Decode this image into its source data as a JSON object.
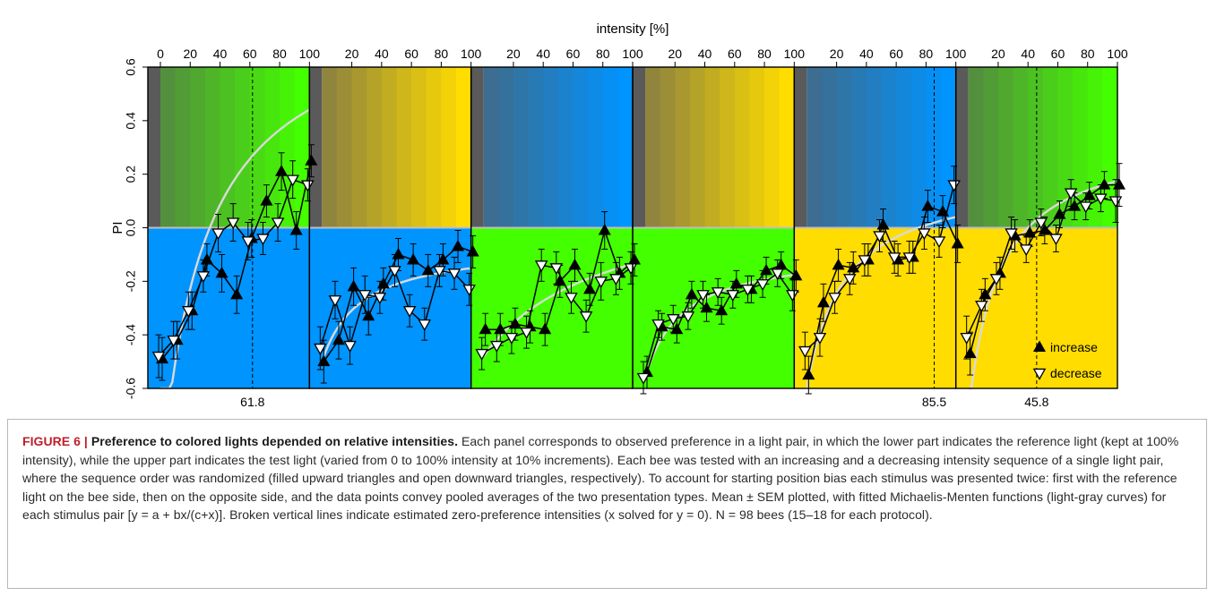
{
  "caption": {
    "label": "FIGURE 6 | ",
    "title": "Preference to colored lights depended on relative intensities.",
    "body": " Each panel corresponds to observed preference in a light pair, in which the lower part indicates the reference light (kept at 100% intensity), while the upper part indicates the test light (varied from 0 to 100% intensity at 10% increments). Each bee was tested with an increasing and a decreasing intensity sequence of a single light pair, where the sequence order was randomized (filled upward triangles and open downward triangles, respectively). To account for starting position bias each stimulus was presented twice: first with the reference light on the bee side, then on the opposite side, and the data points convey pooled averages of the two presentation types. Mean ± SEM plotted, with fitted Michaelis-Menten functions (light-gray curves) for each stimulus pair [y = a + bx/(c+x)]. Broken vertical lines indicate estimated zero-preference intensities (x solved for y = 0). N = 98 bees (15–18 for each protocol)."
  },
  "chart_data": {
    "type": "line",
    "xlabel": "intensity [%]",
    "ylabel": "PI",
    "xlim": [
      0,
      100
    ],
    "ylim": [
      -0.6,
      0.6
    ],
    "x_ticks_first": [
      0,
      20,
      40,
      60,
      80,
      100
    ],
    "x_ticks_other": [
      20,
      40,
      60,
      80,
      100
    ],
    "y_ticks": [
      "-0.6",
      "-0.4",
      "-0.2",
      "0.0",
      "0.2",
      "0.4",
      "0.6"
    ],
    "y_tick_values": [
      -0.6,
      -0.4,
      -0.2,
      0.0,
      0.2,
      0.4,
      0.6
    ],
    "x": [
      0,
      10,
      20,
      30,
      40,
      50,
      60,
      70,
      80,
      90,
      100
    ],
    "legend": {
      "position": "bottom-right",
      "increase": "increase",
      "decrease": "decrease"
    },
    "colors": {
      "blue": "#0094ff",
      "green": "#44ff00",
      "yellow": "#ffdd00",
      "dark_gray": "#5a5a5a",
      "fit_curve": "#d9d9d9",
      "zero_line": "#bfbfbf"
    },
    "panels": [
      {
        "test_color": "green",
        "reference_color": "blue",
        "zero_pref": 61.8,
        "zero_pref_label": "61.8",
        "increase": [
          -0.49,
          -0.42,
          -0.31,
          -0.12,
          -0.17,
          -0.25,
          -0.04,
          0.1,
          0.21,
          -0.01,
          0.25
        ],
        "decrease": [
          -0.48,
          -0.42,
          -0.31,
          -0.18,
          -0.02,
          0.02,
          -0.05,
          -0.04,
          0.02,
          0.18,
          0.16
        ],
        "sem": [
          0.08,
          0.07,
          0.07,
          0.06,
          0.07,
          0.07,
          0.07,
          0.06,
          0.07,
          0.07,
          0.06
        ],
        "fit": {
          "a": -0.97,
          "b": 1.82,
          "c": 29
        }
      },
      {
        "test_color": "yellow",
        "reference_color": "blue",
        "zero_pref": null,
        "zero_pref_label": "",
        "increase": [
          -0.5,
          -0.42,
          -0.22,
          -0.33,
          -0.21,
          -0.1,
          -0.12,
          -0.16,
          -0.12,
          -0.07,
          -0.09
        ],
        "decrease": [
          -0.45,
          -0.27,
          -0.44,
          -0.25,
          -0.26,
          -0.16,
          -0.31,
          -0.36,
          -0.16,
          -0.17,
          -0.23
        ],
        "sem": [
          0.08,
          0.07,
          0.07,
          0.07,
          0.06,
          0.06,
          0.06,
          0.06,
          0.06,
          0.06,
          0.06
        ],
        "fit": {
          "a": -0.5,
          "b": 0.44,
          "c": 26
        }
      },
      {
        "test_color": "blue",
        "reference_color": "green",
        "zero_pref": null,
        "zero_pref_label": "",
        "increase": [
          -0.38,
          -0.38,
          -0.36,
          -0.37,
          -0.38,
          -0.2,
          -0.14,
          -0.23,
          -0.01,
          -0.17,
          -0.12
        ],
        "decrease": [
          -0.47,
          -0.44,
          -0.41,
          -0.39,
          -0.14,
          -0.15,
          -0.26,
          -0.33,
          -0.2,
          -0.19,
          -0.15
        ],
        "sem": [
          0.06,
          0.06,
          0.06,
          0.06,
          0.06,
          0.06,
          0.06,
          0.06,
          0.07,
          0.06,
          0.06
        ],
        "fit": {
          "a": -0.48,
          "b": 0.62,
          "c": 80
        }
      },
      {
        "test_color": "yellow",
        "reference_color": "green",
        "zero_pref": null,
        "zero_pref_label": "",
        "increase": [
          -0.54,
          -0.37,
          -0.38,
          -0.25,
          -0.3,
          -0.31,
          -0.21,
          -0.23,
          -0.16,
          -0.14,
          -0.18
        ],
        "decrease": [
          -0.56,
          -0.36,
          -0.34,
          -0.33,
          -0.25,
          -0.24,
          -0.25,
          -0.23,
          -0.21,
          -0.17,
          -0.25
        ],
        "sem": [
          0.06,
          0.05,
          0.05,
          0.05,
          0.05,
          0.05,
          0.05,
          0.05,
          0.05,
          0.05,
          0.06
        ],
        "fit": {
          "a": -0.56,
          "b": 0.48,
          "c": 25
        }
      },
      {
        "test_color": "blue",
        "reference_color": "yellow",
        "zero_pref": 85.5,
        "zero_pref_label": "85.5",
        "increase": [
          -0.55,
          -0.28,
          -0.14,
          -0.15,
          -0.12,
          0.01,
          -0.12,
          -0.11,
          0.08,
          0.06,
          -0.06
        ],
        "decrease": [
          -0.46,
          -0.41,
          -0.26,
          -0.19,
          -0.12,
          -0.03,
          -0.11,
          -0.11,
          -0.02,
          -0.05,
          0.16
        ],
        "sem": [
          0.07,
          0.07,
          0.06,
          0.06,
          0.06,
          0.06,
          0.06,
          0.06,
          0.06,
          0.06,
          0.07
        ],
        "fit": {
          "a": -0.6,
          "b": 0.8,
          "c": 25
        }
      },
      {
        "test_color": "green",
        "reference_color": "yellow",
        "zero_pref": 45.8,
        "zero_pref_label": "45.8",
        "increase": [
          -0.47,
          -0.25,
          -0.17,
          -0.03,
          -0.02,
          -0.01,
          0.05,
          0.08,
          0.12,
          0.16,
          0.16
        ],
        "decrease": [
          -0.41,
          -0.29,
          -0.19,
          -0.02,
          -0.08,
          0.02,
          -0.04,
          0.13,
          0.08,
          0.11,
          0.1
        ],
        "sem": [
          0.08,
          0.06,
          0.06,
          0.06,
          0.05,
          0.05,
          0.05,
          0.05,
          0.05,
          0.05,
          0.08
        ],
        "fit": {
          "a": -0.7,
          "b": 1.05,
          "c": 20
        }
      }
    ]
  }
}
